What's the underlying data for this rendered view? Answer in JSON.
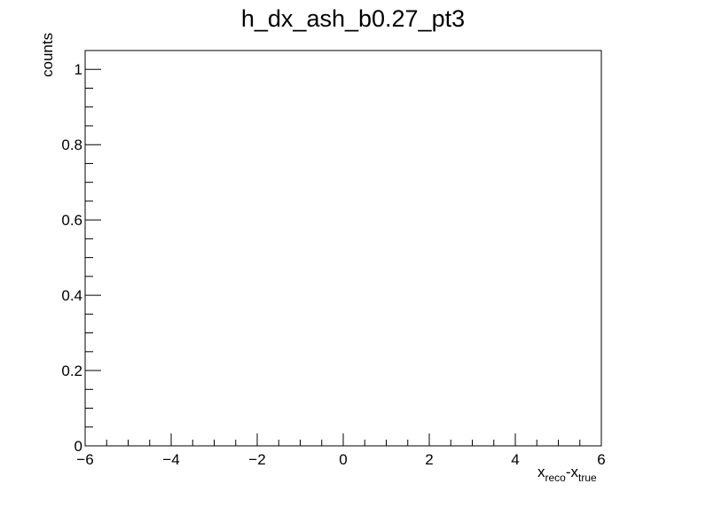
{
  "chart_data": {
    "type": "bar",
    "title": "h_dx_ash_b0.27_pt3",
    "ylabel": "counts",
    "xlabel": {
      "main1": "x",
      "sub1": "reco",
      "dash": "-",
      "main2": "x",
      "sub2": "true"
    },
    "xlim": [
      -6,
      6
    ],
    "ylim": [
      0,
      1.05
    ],
    "x_ticks": [
      {
        "value": -6,
        "label": "−6"
      },
      {
        "value": -4,
        "label": "−4"
      },
      {
        "value": -2,
        "label": "−2"
      },
      {
        "value": 0,
        "label": "0"
      },
      {
        "value": 2,
        "label": "2"
      },
      {
        "value": 4,
        "label": "4"
      },
      {
        "value": 6,
        "label": "6"
      }
    ],
    "x_minor_step": 0.5,
    "y_ticks": [
      {
        "value": 0,
        "label": "0"
      },
      {
        "value": 0.2,
        "label": "0.2"
      },
      {
        "value": 0.4,
        "label": "0.4"
      },
      {
        "value": 0.6,
        "label": "0.6"
      },
      {
        "value": 0.8,
        "label": "0.8"
      },
      {
        "value": 1,
        "label": "1"
      }
    ],
    "y_minor_step": 0.05,
    "values": [],
    "grid": false,
    "legend": "none"
  }
}
